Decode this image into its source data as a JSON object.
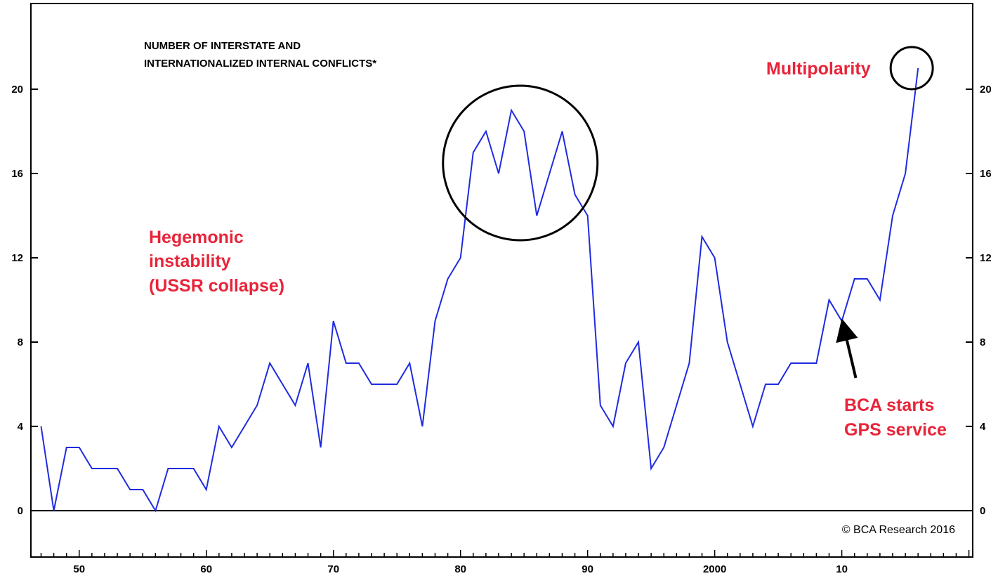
{
  "chart_data": {
    "type": "line",
    "title_lines": [
      "NUMBER OF INTERSTATE AND",
      "INTERNATIONALIZED INTERNAL CONFLICTS*"
    ],
    "xlabel": "",
    "ylabel": "",
    "x_ticks": [
      {
        "year": 1950,
        "label": "50"
      },
      {
        "year": 1960,
        "label": "60"
      },
      {
        "year": 1970,
        "label": "70"
      },
      {
        "year": 1980,
        "label": "80"
      },
      {
        "year": 1990,
        "label": "90"
      },
      {
        "year": 2000,
        "label": "2000"
      },
      {
        "year": 2010,
        "label": "10"
      }
    ],
    "y_ticks": [
      0,
      4,
      8,
      12,
      16,
      20
    ],
    "xlim": [
      1946.2,
      2020.3
    ],
    "ylim": [
      -2,
      24
    ],
    "grid": false,
    "right_axis_mirrors_left": true,
    "series": [
      {
        "color": "#1f2be0",
        "x": [
          1947,
          1948,
          1949,
          1950,
          1951,
          1952,
          1953,
          1954,
          1955,
          1956,
          1957,
          1958,
          1959,
          1960,
          1961,
          1962,
          1963,
          1964,
          1965,
          1966,
          1967,
          1968,
          1969,
          1970,
          1971,
          1972,
          1973,
          1974,
          1975,
          1976,
          1977,
          1978,
          1979,
          1980,
          1981,
          1982,
          1983,
          1984,
          1985,
          1986,
          1987,
          1988,
          1989,
          1990,
          1991,
          1992,
          1993,
          1994,
          1995,
          1996,
          1997,
          1998,
          1999,
          2000,
          2001,
          2002,
          2003,
          2004,
          2005,
          2006,
          2007,
          2008,
          2009,
          2010,
          2011,
          2012,
          2013,
          2014,
          2015,
          2016
        ],
        "y": [
          4,
          0,
          3,
          3,
          2,
          2,
          2,
          1,
          1,
          0,
          2,
          2,
          2,
          1,
          4,
          3,
          4,
          5,
          7,
          6,
          5,
          7,
          3,
          9,
          7,
          7,
          6,
          6,
          6,
          7,
          4,
          9,
          11,
          12,
          17,
          18,
          16,
          19,
          18,
          14,
          16,
          18,
          15,
          14,
          5,
          4,
          7,
          8,
          2,
          3,
          5,
          7,
          13,
          12,
          8,
          6,
          4,
          6,
          6,
          7,
          7,
          7,
          10,
          9,
          11,
          11,
          10,
          14,
          16,
          21
        ]
      }
    ],
    "annotations": {
      "hegemonic": [
        "Hegemonic",
        "instability",
        "(USSR collapse)"
      ],
      "multipolarity": "Multipolarity",
      "bca": [
        "BCA starts",
        "GPS service"
      ]
    },
    "highlight_circles": [
      {
        "x_center": 1984.7,
        "y_center": 16.5
      },
      {
        "x_center": 2015.5,
        "y_center": 21.0
      }
    ],
    "arrow": {
      "from_x": 2011.1,
      "from_y": 6.3,
      "to_x": 2010.2,
      "to_y": 8.6
    },
    "copyright": "© BCA Research 2016",
    "colors": {
      "line": "#1f2be0",
      "annotation": "#e8243a",
      "frame": "#000000"
    }
  }
}
